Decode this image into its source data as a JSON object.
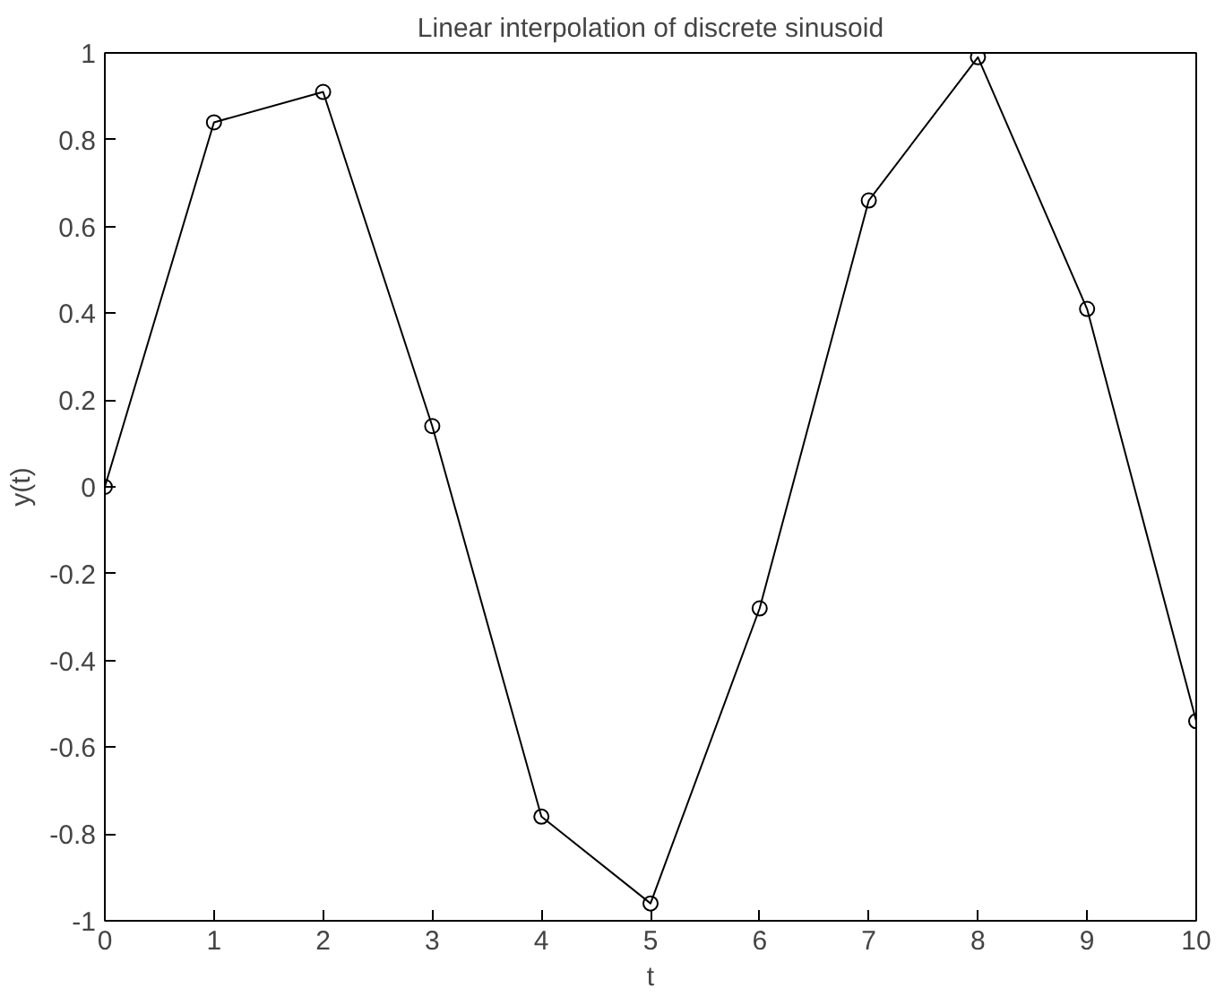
{
  "chart_data": {
    "type": "line",
    "title": "Linear interpolation of discrete sinusoid",
    "xlabel": "t",
    "ylabel": "y(t)",
    "x": [
      0,
      1,
      2,
      3,
      4,
      5,
      6,
      7,
      8,
      9,
      10
    ],
    "series": [
      {
        "color": "#000000",
        "values": [
          0,
          0.84,
          0.91,
          0.14,
          -0.76,
          -0.96,
          -0.28,
          0.66,
          0.99,
          0.41,
          -0.54
        ]
      }
    ],
    "xlim": [
      0,
      10
    ],
    "ylim": [
      -1,
      1
    ],
    "xticks": [
      0,
      1,
      2,
      3,
      4,
      5,
      6,
      7,
      8,
      9,
      10
    ],
    "yticks": [
      -1,
      -0.8,
      -0.6,
      -0.4,
      -0.2,
      0,
      0.2,
      0.4,
      0.6,
      0.8,
      1
    ],
    "marker": "circle",
    "line_style": "solid",
    "grid": false
  }
}
